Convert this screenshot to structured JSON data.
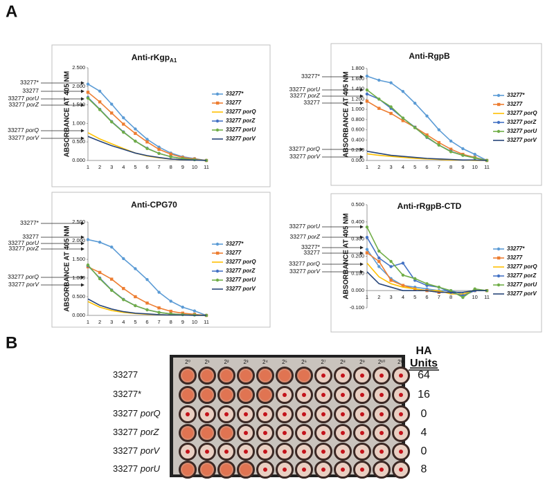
{
  "panel_labels": [
    "A",
    "B"
  ],
  "chart_data": [
    {
      "type": "line",
      "title": "Anti-rKgp",
      "title_subscript": "A1",
      "y_label": "ABSORBANCE AT 405 NM",
      "categories": [
        "1",
        "2",
        "3",
        "4",
        "5",
        "6",
        "7",
        "8",
        "9",
        "10",
        "11"
      ],
      "ylim": [
        0,
        2.5
      ],
      "yticks": [
        {
          "value": 0,
          "label": "0.000"
        },
        {
          "value": 0.5,
          "label": "0.500"
        },
        {
          "value": 1,
          "label": "1.000"
        },
        {
          "value": 1.5,
          "label": "1.500"
        },
        {
          "value": 2,
          "label": "2.000"
        },
        {
          "value": 2.5,
          "label": "2.500"
        }
      ],
      "annotations": [
        "33277*",
        "33277",
        "33277 porU",
        "33277 porZ",
        "33277 porQ",
        "33277 porV"
      ],
      "series": [
        {
          "name": "33277*",
          "color": "#5b9bd5",
          "marker": "circle",
          "values": [
            2.06,
            1.87,
            1.52,
            1.15,
            0.85,
            0.57,
            0.36,
            0.2,
            0.1,
            0.05,
            0
          ]
        },
        {
          "name": "33277",
          "color": "#ed7d31",
          "marker": "square",
          "values": [
            1.84,
            1.58,
            1.28,
            0.98,
            0.73,
            0.5,
            0.3,
            0.17,
            0.08,
            0.04,
            0
          ]
        },
        {
          "name": "33277 porQ",
          "color": "#ffc000",
          "marker": "none",
          "values": [
            0.75,
            0.58,
            0.45,
            0.32,
            0.2,
            0.12,
            0.07,
            0.04,
            0.02,
            0.01,
            0
          ]
        },
        {
          "name": "33277 porZ",
          "color": "#4472c4",
          "marker": "circle",
          "values": [
            1.7,
            1.38,
            1.05,
            0.77,
            0.52,
            0.33,
            0.19,
            0.1,
            0.05,
            0.02,
            0
          ]
        },
        {
          "name": "33277 porU",
          "color": "#70ad47",
          "marker": "circle",
          "values": [
            1.68,
            1.37,
            1.04,
            0.76,
            0.52,
            0.32,
            0.19,
            0.1,
            0.05,
            0.02,
            0
          ]
        },
        {
          "name": "33277 porV",
          "color": "#264478",
          "marker": "none",
          "values": [
            0.65,
            0.52,
            0.4,
            0.3,
            0.2,
            0.13,
            0.08,
            0.04,
            0.02,
            0.01,
            0
          ]
        }
      ]
    },
    {
      "type": "line",
      "title": "Anti-RgpB",
      "y_label": "ABSORBANCE AT 405 NM",
      "categories": [
        "1",
        "2",
        "3",
        "4",
        "5",
        "6",
        "7",
        "8",
        "9",
        "10",
        "11"
      ],
      "ylim": [
        0,
        1.8
      ],
      "yticks": [
        {
          "value": 0,
          "label": "0.000"
        },
        {
          "value": 0.2,
          "label": "0.200"
        },
        {
          "value": 0.4,
          "label": "0.400"
        },
        {
          "value": 0.6,
          "label": "0.600"
        },
        {
          "value": 0.8,
          "label": "0.800"
        },
        {
          "value": 1,
          "label": "1.000"
        },
        {
          "value": 1.2,
          "label": "1.200"
        },
        {
          "value": 1.4,
          "label": "1.400"
        },
        {
          "value": 1.6,
          "label": "1.600"
        },
        {
          "value": 1.8,
          "label": "1.800"
        }
      ],
      "annotations": [
        "33277*",
        "33277 porU",
        "33277 porZ",
        "33277",
        "33277 porQ",
        "33277 porV"
      ],
      "series": [
        {
          "name": "33277*",
          "color": "#5b9bd5",
          "marker": "circle",
          "values": [
            1.65,
            1.57,
            1.52,
            1.35,
            1.12,
            0.87,
            0.6,
            0.38,
            0.23,
            0.12,
            0
          ]
        },
        {
          "name": "33277",
          "color": "#ed7d31",
          "marker": "square",
          "values": [
            1.16,
            1.02,
            0.92,
            0.78,
            0.65,
            0.5,
            0.35,
            0.22,
            0.12,
            0.06,
            0
          ]
        },
        {
          "name": "33277 porQ",
          "color": "#ffc000",
          "marker": "none",
          "values": [
            0.13,
            0.1,
            0.08,
            0.06,
            0.04,
            0.03,
            0.02,
            0.01,
            0.01,
            0,
            0
          ]
        },
        {
          "name": "33277 porZ",
          "color": "#4472c4",
          "marker": "circle",
          "values": [
            1.3,
            1.2,
            1.02,
            0.83,
            0.65,
            0.45,
            0.3,
            0.18,
            0.1,
            0.05,
            0
          ]
        },
        {
          "name": "33277 porU",
          "color": "#70ad47",
          "marker": "circle",
          "values": [
            1.38,
            1.2,
            1.05,
            0.83,
            0.64,
            0.46,
            0.3,
            0.17,
            0.1,
            0.05,
            0
          ]
        },
        {
          "name": "33277 porV",
          "color": "#264478",
          "marker": "none",
          "values": [
            0.18,
            0.14,
            0.1,
            0.08,
            0.06,
            0.04,
            0.03,
            0.02,
            0.01,
            0.01,
            0
          ]
        }
      ]
    },
    {
      "type": "line",
      "title": "Anti-CPG70",
      "y_label": "ABSORBANCE AT 405 NM",
      "categories": [
        "1",
        "2",
        "3",
        "4",
        "5",
        "6",
        "7",
        "8",
        "9",
        "10",
        "11"
      ],
      "ylim": [
        0,
        2.5
      ],
      "yticks": [
        {
          "value": 0,
          "label": "0.000"
        },
        {
          "value": 0.5,
          "label": "0.500"
        },
        {
          "value": 1,
          "label": "1.000"
        },
        {
          "value": 1.5,
          "label": "1.500"
        },
        {
          "value": 2,
          "label": "2.000"
        },
        {
          "value": 2.5,
          "label": "2.500"
        }
      ],
      "annotations": [
        "33277*",
        "33277",
        "33277 porU",
        "33277 porZ",
        "33277 porQ",
        "33277 porV"
      ],
      "series": [
        {
          "name": "33277*",
          "color": "#5b9bd5",
          "marker": "circle",
          "values": [
            2.03,
            1.96,
            1.83,
            1.52,
            1.25,
            0.96,
            0.62,
            0.38,
            0.22,
            0.12,
            0
          ]
        },
        {
          "name": "33277",
          "color": "#ed7d31",
          "marker": "square",
          "values": [
            1.3,
            1.15,
            0.97,
            0.72,
            0.5,
            0.33,
            0.2,
            0.11,
            0.06,
            0.03,
            0
          ]
        },
        {
          "name": "33277 porQ",
          "color": "#ffc000",
          "marker": "none",
          "values": [
            0.37,
            0.22,
            0.13,
            0.08,
            0.05,
            0.03,
            0.02,
            0.01,
            0.01,
            0,
            0
          ]
        },
        {
          "name": "33277 porZ",
          "color": "#4472c4",
          "marker": "circle",
          "values": [
            1.33,
            1.0,
            0.68,
            0.43,
            0.26,
            0.15,
            0.08,
            0.04,
            0.02,
            0.01,
            0
          ]
        },
        {
          "name": "33277 porU",
          "color": "#70ad47",
          "marker": "circle",
          "values": [
            1.35,
            0.98,
            0.67,
            0.42,
            0.26,
            0.15,
            0.08,
            0.04,
            0.02,
            0.01,
            0
          ]
        },
        {
          "name": "33277 porV",
          "color": "#264478",
          "marker": "none",
          "values": [
            0.44,
            0.27,
            0.17,
            0.1,
            0.06,
            0.04,
            0.02,
            0.01,
            0.01,
            0,
            0
          ]
        }
      ]
    },
    {
      "type": "line",
      "title": "Anti-rRgpB-CTD",
      "y_label": "ABSORBANCE AT 405 NM",
      "categories": [
        "1",
        "2",
        "3",
        "4",
        "5",
        "6",
        "7",
        "8",
        "9",
        "10",
        "11"
      ],
      "ylim": [
        -0.1,
        0.5
      ],
      "yticks": [
        {
          "value": -0.1,
          "label": "-0.100"
        },
        {
          "value": 0,
          "label": "0.000"
        },
        {
          "value": 0.1,
          "label": "0.100"
        },
        {
          "value": 0.2,
          "label": "0.200"
        },
        {
          "value": 0.3,
          "label": "0.300"
        },
        {
          "value": 0.4,
          "label": "0.400"
        },
        {
          "value": 0.5,
          "label": "0.500"
        }
      ],
      "annotations": [
        "33277 porU",
        "33277 porZ",
        "33277*",
        "33277",
        "33277 porQ",
        "33277 porV"
      ],
      "series": [
        {
          "name": "33277*",
          "color": "#5b9bd5",
          "marker": "circle",
          "values": [
            0.24,
            0.14,
            0.07,
            0.03,
            0.02,
            0.01,
            0,
            0,
            -0.02,
            0,
            0
          ]
        },
        {
          "name": "33277",
          "color": "#ed7d31",
          "marker": "square",
          "values": [
            0.22,
            0.17,
            0.06,
            0.03,
            0.01,
            0,
            -0.01,
            -0.01,
            -0.03,
            0,
            0
          ]
        },
        {
          "name": "33277 porQ",
          "color": "#ffc000",
          "marker": "none",
          "values": [
            0.16,
            0.08,
            0.04,
            0.02,
            0.01,
            0,
            0,
            -0.02,
            -0.02,
            0,
            0
          ]
        },
        {
          "name": "33277 porZ",
          "color": "#4472c4",
          "marker": "circle",
          "values": [
            0.31,
            0.19,
            0.14,
            0.16,
            0.06,
            0.03,
            0.02,
            -0.01,
            -0.03,
            0,
            0
          ]
        },
        {
          "name": "33277 porU",
          "color": "#70ad47",
          "marker": "circle",
          "values": [
            0.37,
            0.23,
            0.17,
            0.09,
            0.07,
            0.04,
            0.02,
            0,
            -0.04,
            0.01,
            0
          ]
        },
        {
          "name": "33277 porV",
          "color": "#264478",
          "marker": "none",
          "values": [
            0.11,
            0.04,
            0.02,
            0,
            0,
            0,
            -0.01,
            -0.01,
            -0.01,
            0,
            0
          ]
        }
      ]
    }
  ],
  "ha_assay": {
    "header": [
      "HA",
      "Units"
    ],
    "column_labels": [
      "2⁰",
      "2¹",
      "2²",
      "2³",
      "2⁴",
      "2⁵",
      "2⁶",
      "2⁷",
      "2⁸",
      "2⁹",
      "2¹⁰",
      "2¹¹"
    ],
    "rows": [
      {
        "label": "33277",
        "ha_units": 64
      },
      {
        "label": "33277*",
        "ha_units": 16
      },
      {
        "label": "33277 porQ",
        "ha_units": 0
      },
      {
        "label": "33277 porZ",
        "ha_units": 4
      },
      {
        "label": "33277 porV",
        "ha_units": 0
      },
      {
        "label": "33277 porU",
        "ha_units": 8
      }
    ]
  }
}
